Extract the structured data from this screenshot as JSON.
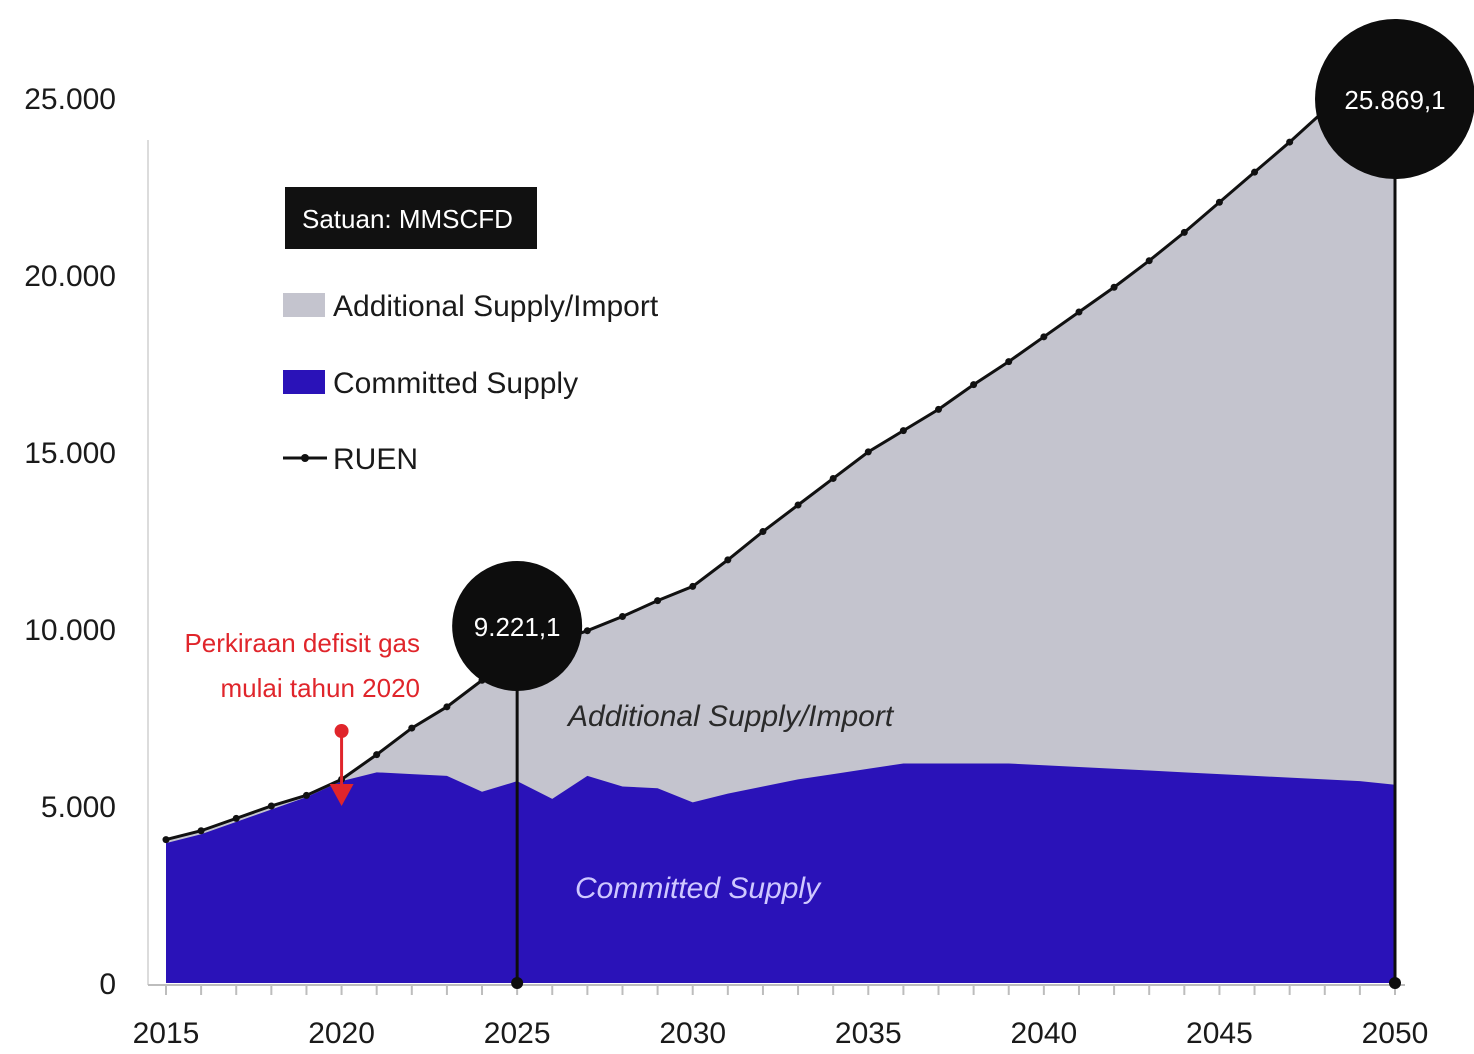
{
  "chart_data": {
    "type": "area",
    "unit_box": "Satuan: MMSCFD",
    "legend": {
      "additional": "Additional Supply/Import",
      "committed": "Committed Supply",
      "ruen": "RUEN"
    },
    "x_ticks": [
      "2015",
      "2020",
      "2025",
      "2030",
      "2035",
      "2040",
      "2045",
      "2050"
    ],
    "y_ticks": [
      "0",
      "5.000",
      "10.000",
      "15.000",
      "20.000",
      "25.000"
    ],
    "xlim": [
      2015,
      2050
    ],
    "ylim": [
      0,
      27000
    ],
    "colors": {
      "committed": "#2a12b8",
      "additional": "#c4c4ce",
      "ruen": "#111111",
      "bubble": "#0d0d0d",
      "note": "#e0252b",
      "committed_label": "#cfc8ff",
      "additional_label": "#2a2a2a"
    },
    "area_labels": {
      "additional": "Additional Supply/Import",
      "committed": "Committed Supply"
    },
    "annotations": {
      "bubble_2025": {
        "year": 2025,
        "value": 9221.1,
        "label": "9.221,1"
      },
      "bubble_2050": {
        "year": 2050,
        "value": 25869.1,
        "label": "25.869,1"
      },
      "deficit_note": {
        "line1": "Perkiraan defisit gas",
        "line2": "mulai tahun 2020",
        "year": 2020
      }
    },
    "series": [
      {
        "name": "RUEN",
        "x": [
          2015,
          2016,
          2017,
          2018,
          2019,
          2020,
          2021,
          2022,
          2023,
          2024,
          2025,
          2026,
          2027,
          2028,
          2029,
          2030,
          2031,
          2032,
          2033,
          2034,
          2035,
          2036,
          2037,
          2038,
          2039,
          2040,
          2041,
          2042,
          2043,
          2044,
          2045,
          2046,
          2047,
          2048,
          2049,
          2050
        ],
        "values": [
          4050,
          4300,
          4650,
          5000,
          5300,
          5750,
          6450,
          7200,
          7800,
          8550,
          9221.1,
          9600,
          9950,
          10350,
          10800,
          11200,
          11950,
          12750,
          13500,
          14250,
          15000,
          15600,
          16200,
          16900,
          17550,
          18250,
          18950,
          19650,
          20400,
          21200,
          22050,
          22900,
          23750,
          24650,
          25500,
          25869.1
        ]
      },
      {
        "name": "Committed Supply",
        "x": [
          2015,
          2016,
          2017,
          2018,
          2019,
          2020,
          2021,
          2022,
          2023,
          2024,
          2025,
          2026,
          2027,
          2028,
          2029,
          2030,
          2031,
          2032,
          2033,
          2034,
          2035,
          2036,
          2037,
          2038,
          2039,
          2040,
          2041,
          2042,
          2043,
          2044,
          2045,
          2046,
          2047,
          2048,
          2049,
          2050
        ],
        "values": [
          3950,
          4200,
          4550,
          4900,
          5250,
          5700,
          5950,
          5900,
          5850,
          5400,
          5700,
          5200,
          5850,
          5550,
          5500,
          5100,
          5350,
          5550,
          5750,
          5900,
          6050,
          6200,
          6200,
          6200,
          6200,
          6150,
          6100,
          6050,
          6000,
          5950,
          5900,
          5850,
          5800,
          5750,
          5700,
          5600
        ]
      }
    ]
  }
}
